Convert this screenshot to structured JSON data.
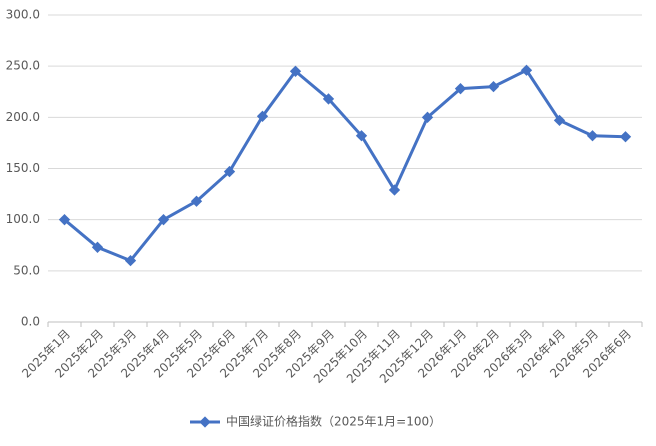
{
  "chart_data": {
    "type": "line",
    "categories": [
      "2025年1月",
      "2025年2月",
      "2025年3月",
      "2025年4月",
      "2025年5月",
      "2025年6月",
      "2025年7月",
      "2025年8月",
      "2025年9月",
      "2025年10月",
      "2025年11月",
      "2025年12月",
      "2026年1月",
      "2026年2月",
      "2026年3月",
      "2026年4月",
      "2026年5月",
      "2026年6月"
    ],
    "series": [
      {
        "name": "中国绿证价格指数（2025年1月=100）",
        "color": "#4472c4",
        "values": [
          100,
          73,
          60,
          100,
          118,
          147,
          201,
          245,
          218,
          182,
          129,
          200,
          228,
          230,
          246,
          197,
          182,
          181
        ]
      }
    ],
    "ylim": [
      0,
      300
    ],
    "yticks": [
      {
        "value": 0,
        "label": "0.0"
      },
      {
        "value": 50,
        "label": "50.0"
      },
      {
        "value": 100,
        "label": "100.0"
      },
      {
        "value": 150,
        "label": "150.0"
      },
      {
        "value": 200,
        "label": "200.0"
      },
      {
        "value": 250,
        "label": "250.0"
      },
      {
        "value": 300,
        "label": "300.0"
      }
    ],
    "grid": true,
    "legend": "bottom"
  }
}
